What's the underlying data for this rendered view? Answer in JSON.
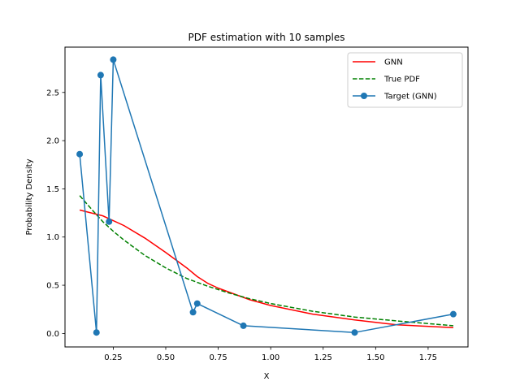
{
  "chart_data": {
    "type": "line",
    "title": "PDF estimation with 10 samples",
    "xlabel": "X",
    "ylabel": "Probability Density",
    "xlim": [
      0.02,
      1.94
    ],
    "ylim": [
      -0.14,
      2.97
    ],
    "xticks": [
      0.25,
      0.5,
      0.75,
      1.0,
      1.25,
      1.5,
      1.75
    ],
    "xtick_labels": [
      "0.25",
      "0.50",
      "0.75",
      "1.00",
      "1.25",
      "1.50",
      "1.75"
    ],
    "yticks": [
      0.0,
      0.5,
      1.0,
      1.5,
      2.0,
      2.5
    ],
    "ytick_labels": [
      "0.0",
      "0.5",
      "1.0",
      "1.5",
      "2.0",
      "2.5"
    ],
    "grid": false,
    "legend_position": "top-right",
    "series": [
      {
        "name": "GNN",
        "color": "#ff0000",
        "style": "solid",
        "marker": "none",
        "x": [
          0.09,
          0.2,
          0.3,
          0.4,
          0.5,
          0.6,
          0.65,
          0.7,
          0.75,
          0.8,
          0.9,
          1.0,
          1.2,
          1.4,
          1.6,
          1.87
        ],
        "y": [
          1.28,
          1.22,
          1.12,
          0.99,
          0.84,
          0.68,
          0.59,
          0.52,
          0.47,
          0.43,
          0.35,
          0.29,
          0.2,
          0.14,
          0.09,
          0.06
        ]
      },
      {
        "name": "True PDF",
        "color": "#008000",
        "style": "dashed",
        "marker": "none",
        "x": [
          0.09,
          0.15,
          0.2,
          0.25,
          0.3,
          0.4,
          0.5,
          0.6,
          0.7,
          0.8,
          0.9,
          1.0,
          1.2,
          1.4,
          1.6,
          1.87
        ],
        "y": [
          1.43,
          1.28,
          1.16,
          1.06,
          0.97,
          0.81,
          0.68,
          0.57,
          0.49,
          0.42,
          0.36,
          0.31,
          0.23,
          0.17,
          0.13,
          0.08
        ]
      },
      {
        "name": "Target (GNN)",
        "color": "#1f77b4",
        "style": "solid",
        "marker": "circle",
        "x": [
          0.09,
          0.17,
          0.19,
          0.23,
          0.25,
          0.63,
          0.65,
          0.87,
          1.4,
          1.87
        ],
        "y": [
          1.86,
          0.01,
          2.68,
          1.16,
          2.84,
          0.22,
          0.31,
          0.08,
          0.01,
          0.2
        ]
      }
    ]
  }
}
